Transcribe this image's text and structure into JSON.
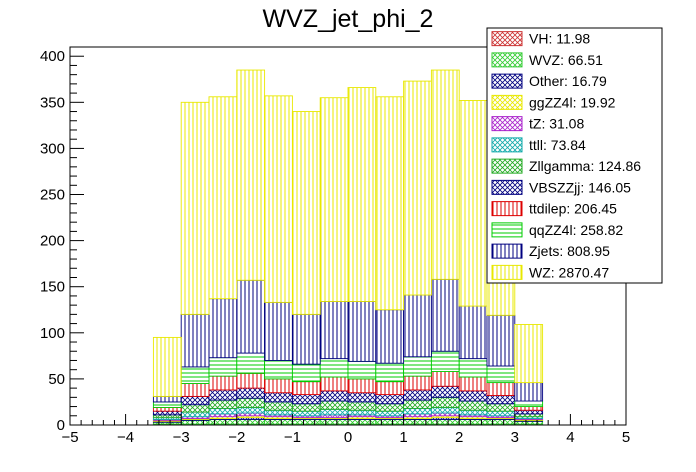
{
  "chart_data": {
    "type": "stacked-histogram",
    "title": "WVZ_jet_phi_2",
    "xlabel": "",
    "ylabel": "",
    "xlim": [
      -5,
      5
    ],
    "ylim": [
      0,
      410
    ],
    "x_ticks": [
      -5,
      -4,
      -3,
      -2,
      -1,
      0,
      1,
      2,
      3,
      4,
      5
    ],
    "y_ticks": [
      0,
      50,
      100,
      150,
      200,
      250,
      300,
      350,
      400
    ],
    "grid": false,
    "legend_position": "top-right",
    "bin_edges": [
      -3.5,
      -3.0,
      -2.5,
      -2.0,
      -1.5,
      -1.0,
      -0.5,
      0.0,
      0.5,
      1.0,
      1.5,
      2.0,
      2.5,
      3.0,
      3.5
    ],
    "series": [
      {
        "name": "VH: 11.98",
        "color": "#cc3333",
        "pattern": "crosshatch",
        "values": [
          1,
          1,
          1,
          1,
          1,
          1,
          1,
          1,
          1,
          1,
          1,
          1,
          1,
          1
        ]
      },
      {
        "name": "WVZ: 66.51",
        "color": "#33cc33",
        "pattern": "crosshatch",
        "values": [
          2,
          4,
          5,
          5,
          5,
          5,
          5,
          5,
          5,
          5,
          5,
          5,
          5,
          3
        ]
      },
      {
        "name": "Other: 16.79",
        "color": "#000080",
        "pattern": "crosshatch",
        "values": [
          1,
          1,
          1,
          2,
          1,
          1,
          1,
          1,
          1,
          1,
          2,
          1,
          1,
          1
        ]
      },
      {
        "name": "ggZZ4l: 19.92",
        "color": "#e8e800",
        "pattern": "crosshatch",
        "values": [
          1,
          1,
          2,
          2,
          2,
          1,
          1,
          2,
          1,
          2,
          2,
          2,
          1,
          1
        ]
      },
      {
        "name": "tZ: 31.08",
        "color": "#aa22cc",
        "pattern": "crosshatch",
        "values": [
          1,
          2,
          3,
          3,
          2,
          2,
          3,
          2,
          2,
          3,
          3,
          2,
          2,
          1
        ]
      },
      {
        "name": "ttll: 73.84",
        "color": "#11aaaa",
        "pattern": "crosshatch",
        "values": [
          2,
          5,
          6,
          6,
          5,
          5,
          6,
          5,
          5,
          6,
          6,
          5,
          5,
          2
        ]
      },
      {
        "name": "Zllgamma: 124.86",
        "color": "#22aa22",
        "pattern": "crosshatch",
        "values": [
          3,
          8,
          9,
          10,
          9,
          8,
          9,
          9,
          8,
          9,
          11,
          10,
          8,
          3
        ]
      },
      {
        "name": "VBSZZjj: 146.05",
        "color": "#000080",
        "pattern": "crosshatch",
        "values": [
          4,
          9,
          11,
          11,
          10,
          10,
          11,
          10,
          10,
          11,
          12,
          11,
          9,
          4
        ]
      },
      {
        "name": "ttdilep: 206.45",
        "color": "#dd0000",
        "pattern": "vertical",
        "values": [
          4,
          14,
          15,
          16,
          15,
          14,
          15,
          15,
          14,
          15,
          16,
          15,
          14,
          4
        ]
      },
      {
        "name": "qqZZ4l: 258.82",
        "color": "#00cc00",
        "pattern": "horizontal",
        "values": [
          6,
          18,
          20,
          22,
          20,
          19,
          20,
          19,
          20,
          21,
          22,
          20,
          18,
          6
        ]
      },
      {
        "name": "Zjets: 808.95",
        "color": "#000080",
        "pattern": "vertical",
        "values": [
          6,
          57,
          64,
          79,
          63,
          54,
          62,
          65,
          58,
          67,
          78,
          57,
          55,
          20
        ]
      },
      {
        "name": "WZ: 2870.47",
        "color": "#e8e800",
        "pattern": "vertical",
        "values": [
          64,
          230,
          219,
          228,
          224,
          220,
          221,
          232,
          231,
          232,
          227,
          223,
          202,
          63
        ]
      }
    ]
  }
}
